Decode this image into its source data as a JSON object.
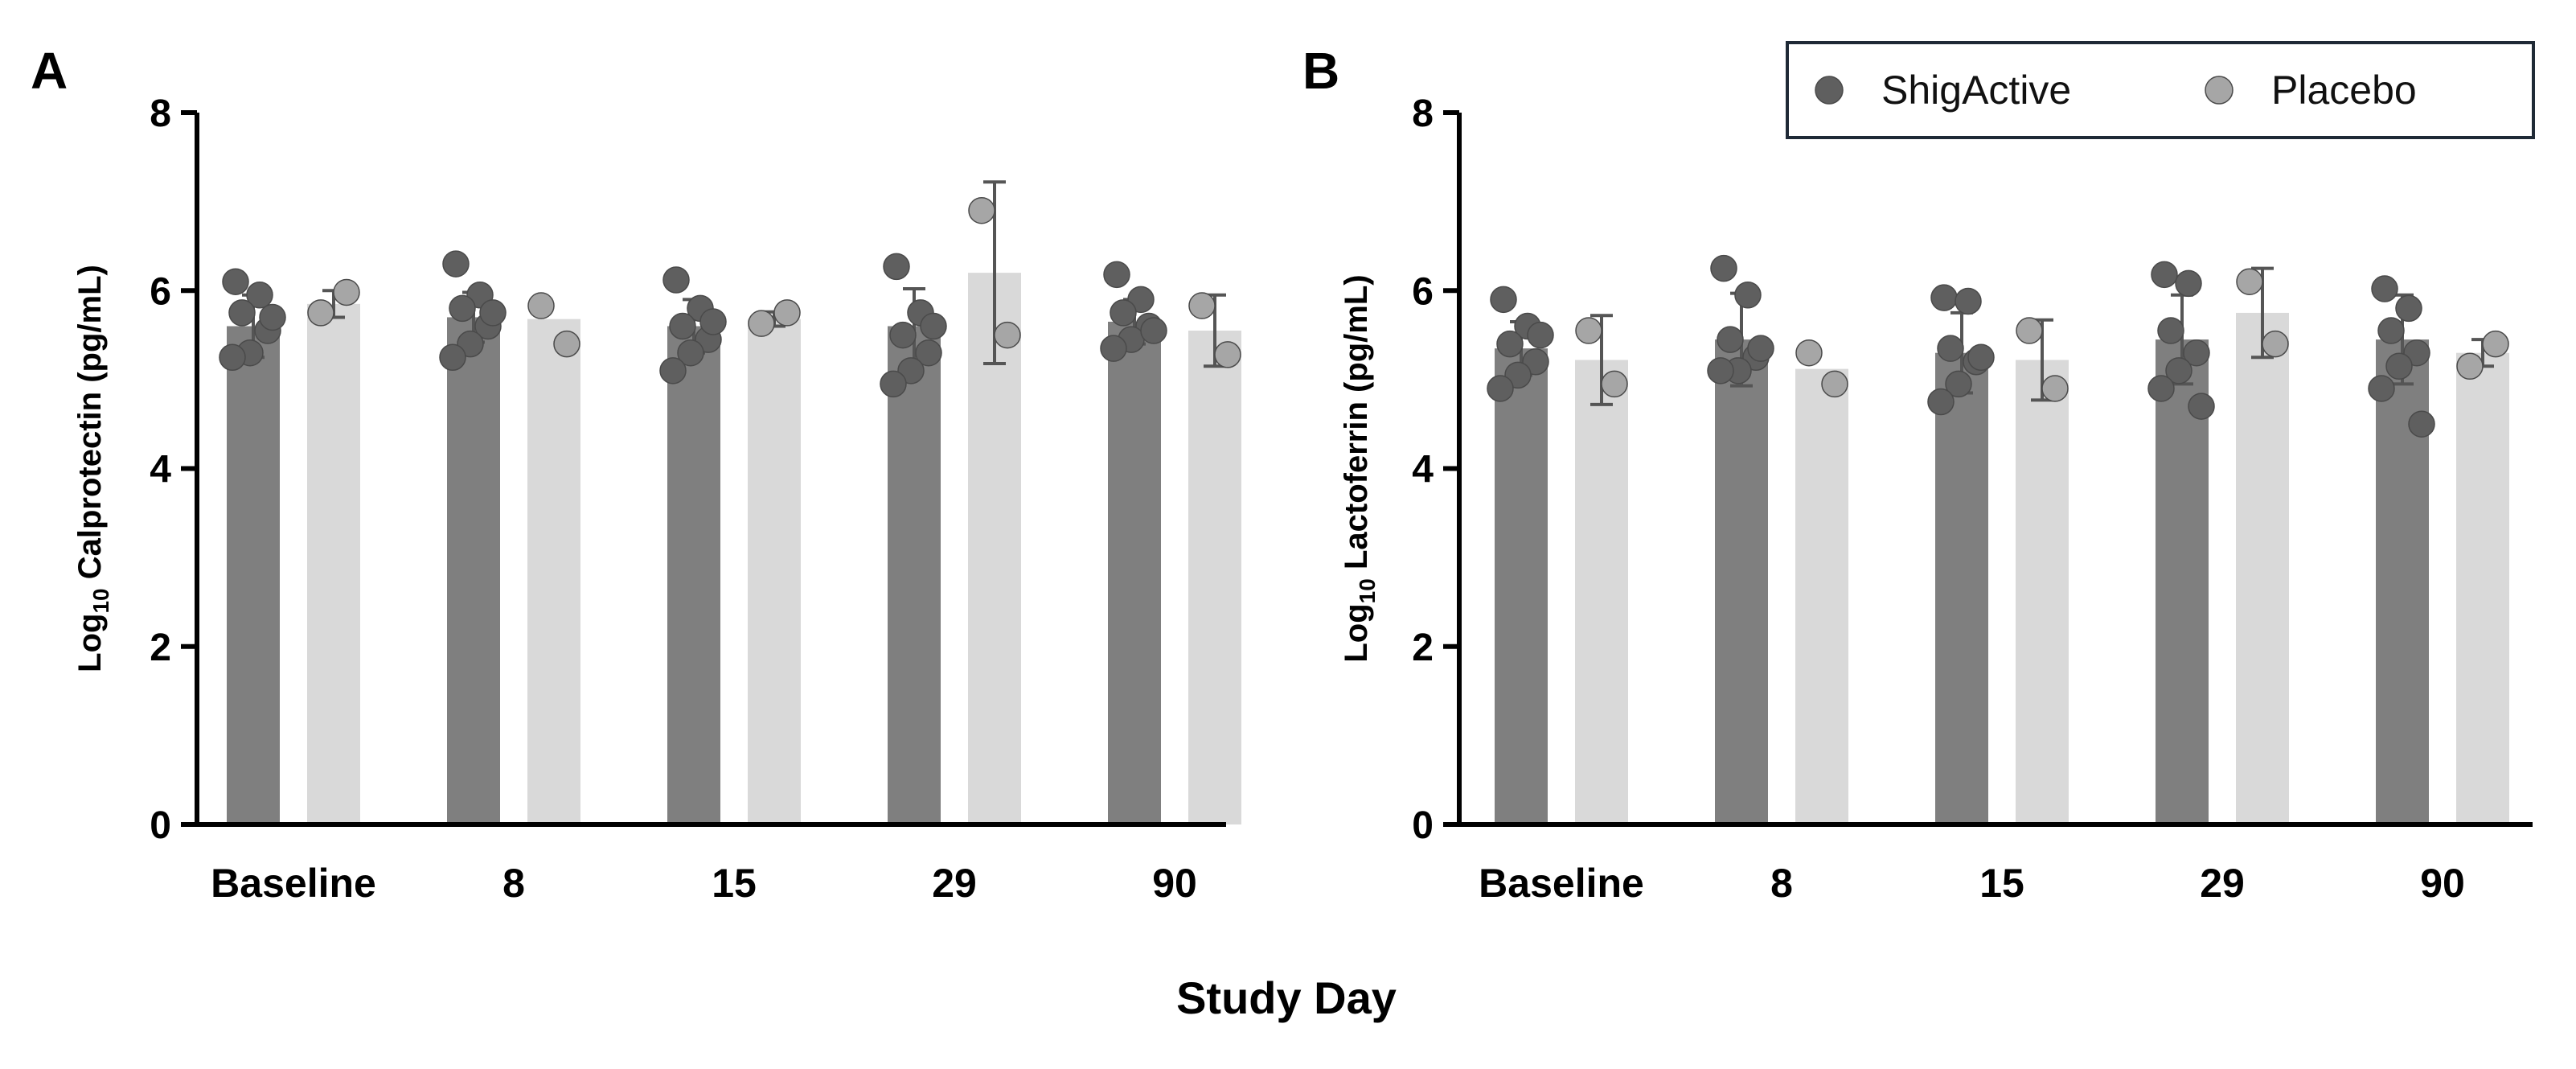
{
  "figure": {
    "shared_xlabel": "Study Day",
    "legend": [
      {
        "label": "ShigActive",
        "color": "#5f5f5f"
      },
      {
        "label": "Placebo",
        "color": "#a6a6a6"
      }
    ],
    "colors": {
      "shig_bar": "#7f7f7f",
      "shig_point": "#5f5f5f",
      "placebo_bar": "#d9d9d9",
      "placebo_point": "#a6a6a6",
      "axis": "#000000",
      "error_bar": "#555555"
    }
  },
  "chart_data": [
    {
      "type": "bar",
      "panel_label": "A",
      "ylabel_prefix": "Log",
      "ylabel_sub": "10",
      "ylabel_suffix": " Calprotectin (pg/mL)",
      "ylim": [
        0,
        8
      ],
      "yticks": [
        0,
        2,
        4,
        6,
        8
      ],
      "categories": [
        "Baseline",
        "8",
        "15",
        "29",
        "90"
      ],
      "series": [
        {
          "name": "ShigActive",
          "values": [
            5.6,
            5.7,
            5.6,
            5.6,
            5.65
          ],
          "errors": [
            0.35,
            0.28,
            0.3,
            0.42,
            0.25
          ],
          "points": [
            [
              6.1,
              5.95,
              5.75,
              5.55,
              5.3,
              5.25,
              5.7
            ],
            [
              6.3,
              5.95,
              5.8,
              5.6,
              5.4,
              5.25,
              5.75
            ],
            [
              6.12,
              5.8,
              5.6,
              5.45,
              5.3,
              5.1,
              5.65
            ],
            [
              6.27,
              5.75,
              5.5,
              5.3,
              5.1,
              4.95,
              5.6
            ],
            [
              6.18,
              5.9,
              5.75,
              5.6,
              5.45,
              5.35,
              5.55
            ]
          ]
        },
        {
          "name": "Placebo",
          "values": [
            5.85,
            5.68,
            5.68,
            6.2,
            5.55
          ],
          "errors": [
            0.15,
            0.0,
            0.08,
            1.02,
            0.4
          ],
          "points": [
            [
              5.75,
              5.98
            ],
            [
              5.83,
              5.4
            ],
            [
              5.63,
              5.75
            ],
            [
              6.9,
              5.5
            ],
            [
              5.83,
              5.28
            ]
          ]
        }
      ]
    },
    {
      "type": "bar",
      "panel_label": "B",
      "ylabel_prefix": "Log",
      "ylabel_sub": "10",
      "ylabel_suffix": " Lactoferrin (pg/mL)",
      "ylim": [
        0,
        8
      ],
      "yticks": [
        0,
        2,
        4,
        6,
        8
      ],
      "categories": [
        "Baseline",
        "8",
        "15",
        "29",
        "90"
      ],
      "series": [
        {
          "name": "ShigActive",
          "values": [
            5.35,
            5.45,
            5.3,
            5.45,
            5.45
          ],
          "errors": [
            0.3,
            0.52,
            0.45,
            0.5,
            0.5
          ],
          "points": [
            [
              5.9,
              5.6,
              5.4,
              5.2,
              5.05,
              4.9,
              5.5
            ],
            [
              6.25,
              5.95,
              5.45,
              5.25,
              5.1,
              5.1,
              5.35
            ],
            [
              5.92,
              5.88,
              5.35,
              5.2,
              4.95,
              4.75,
              5.25
            ],
            [
              6.18,
              6.08,
              5.55,
              5.3,
              5.1,
              4.9,
              4.7
            ],
            [
              6.02,
              5.8,
              5.55,
              5.3,
              5.15,
              4.9,
              4.5
            ]
          ]
        },
        {
          "name": "Placebo",
          "values": [
            5.22,
            5.12,
            5.22,
            5.75,
            5.3
          ],
          "errors": [
            0.5,
            0.0,
            0.45,
            0.5,
            0.15
          ],
          "points": [
            [
              5.55,
              4.95
            ],
            [
              5.3,
              4.95
            ],
            [
              5.55,
              4.9
            ],
            [
              6.1,
              5.4
            ],
            [
              5.15,
              5.4
            ]
          ]
        }
      ]
    }
  ]
}
